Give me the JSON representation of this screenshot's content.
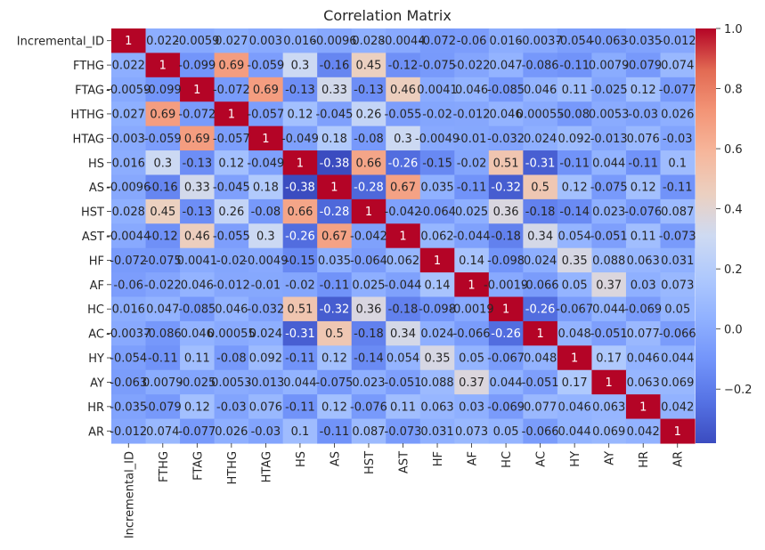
{
  "chart_data": {
    "type": "heatmap",
    "title": "Correlation Matrix",
    "xlabel": "",
    "ylabel": "",
    "colormap": "coolwarm",
    "vmin": -0.38,
    "vmax": 1.0,
    "colorbar_ticks": [
      "1.0",
      "0.8",
      "0.6",
      "0.4",
      "0.2",
      "0.0",
      "−0.2"
    ],
    "colorbar_tick_values": [
      1.0,
      0.8,
      0.6,
      0.4,
      0.2,
      0.0,
      -0.2
    ],
    "rows": [
      "Incremental_ID",
      "FTHG",
      "FTAG",
      "HTHG",
      "HTAG",
      "HS",
      "AS",
      "HST",
      "AST",
      "HF",
      "AF",
      "HC",
      "AC",
      "HY",
      "AY",
      "HR",
      "AR"
    ],
    "cols": [
      "Incremental_ID",
      "FTHG",
      "FTAG",
      "HTHG",
      "HTAG",
      "HS",
      "AS",
      "HST",
      "AST",
      "HF",
      "AF",
      "HC",
      "AC",
      "HY",
      "AY",
      "HR",
      "AR"
    ],
    "values": [
      [
        1,
        0.022,
        -0.0059,
        0.027,
        0.003,
        0.016,
        -0.0096,
        0.028,
        -0.0044,
        -0.072,
        -0.06,
        0.016,
        -0.0037,
        -0.054,
        -0.063,
        -0.035,
        -0.012
      ],
      [
        0.022,
        1,
        -0.099,
        0.69,
        -0.059,
        0.3,
        -0.16,
        0.45,
        -0.12,
        -0.075,
        -0.022,
        0.047,
        -0.086,
        -0.11,
        0.0079,
        -0.079,
        0.074
      ],
      [
        -0.0059,
        -0.099,
        1,
        -0.072,
        0.69,
        -0.13,
        0.33,
        -0.13,
        0.46,
        0.0041,
        0.046,
        -0.085,
        0.046,
        0.11,
        -0.025,
        0.12,
        -0.077
      ],
      [
        0.027,
        0.69,
        -0.072,
        1,
        -0.057,
        0.12,
        -0.045,
        0.26,
        -0.055,
        -0.02,
        -0.012,
        0.046,
        0.00055,
        -0.08,
        0.0053,
        -0.03,
        0.026
      ],
      [
        0.003,
        -0.059,
        0.69,
        -0.057,
        1,
        -0.049,
        0.18,
        -0.08,
        0.3,
        -0.0049,
        -0.01,
        -0.032,
        0.024,
        0.092,
        -0.013,
        0.076,
        -0.03
      ],
      [
        0.016,
        0.3,
        -0.13,
        0.12,
        -0.049,
        1,
        -0.38,
        0.66,
        -0.26,
        -0.15,
        -0.02,
        0.51,
        -0.31,
        -0.11,
        0.044,
        -0.11,
        0.1
      ],
      [
        -0.0096,
        -0.16,
        0.33,
        -0.045,
        0.18,
        -0.38,
        1,
        -0.28,
        0.67,
        0.035,
        -0.11,
        -0.32,
        0.5,
        0.12,
        -0.075,
        0.12,
        -0.11
      ],
      [
        0.028,
        0.45,
        -0.13,
        0.26,
        -0.08,
        0.66,
        -0.28,
        1,
        -0.042,
        -0.064,
        0.025,
        0.36,
        -0.18,
        -0.14,
        0.023,
        -0.076,
        0.087
      ],
      [
        -0.0044,
        -0.12,
        0.46,
        -0.055,
        0.3,
        -0.26,
        0.67,
        -0.042,
        1,
        0.062,
        -0.044,
        -0.18,
        0.34,
        0.054,
        -0.051,
        0.11,
        -0.073
      ],
      [
        -0.072,
        -0.075,
        0.0041,
        -0.02,
        -0.0049,
        -0.15,
        0.035,
        -0.064,
        0.062,
        1,
        0.14,
        -0.098,
        0.024,
        0.35,
        0.088,
        0.063,
        0.031
      ],
      [
        -0.06,
        -0.022,
        0.046,
        -0.012,
        -0.01,
        -0.02,
        -0.11,
        0.025,
        -0.044,
        0.14,
        1,
        -0.0019,
        -0.066,
        0.05,
        0.37,
        0.03,
        0.073
      ],
      [
        0.016,
        0.047,
        -0.085,
        0.046,
        -0.032,
        0.51,
        -0.32,
        0.36,
        -0.18,
        -0.098,
        -0.0019,
        1,
        -0.26,
        -0.067,
        0.044,
        -0.069,
        0.05
      ],
      [
        -0.0037,
        -0.086,
        0.046,
        0.00055,
        0.024,
        -0.31,
        0.5,
        -0.18,
        0.34,
        0.024,
        -0.066,
        -0.26,
        1,
        0.048,
        -0.051,
        0.077,
        -0.066
      ],
      [
        -0.054,
        -0.11,
        0.11,
        -0.08,
        0.092,
        -0.11,
        0.12,
        -0.14,
        0.054,
        0.35,
        0.05,
        -0.067,
        0.048,
        1,
        0.17,
        0.046,
        0.044
      ],
      [
        -0.063,
        0.0079,
        -0.025,
        0.0053,
        -0.013,
        0.044,
        -0.075,
        0.023,
        -0.051,
        0.088,
        0.37,
        0.044,
        -0.051,
        0.17,
        1,
        0.063,
        0.069
      ],
      [
        -0.035,
        -0.079,
        0.12,
        -0.03,
        0.076,
        -0.11,
        0.12,
        -0.076,
        0.11,
        0.063,
        0.03,
        -0.069,
        0.077,
        0.046,
        0.063,
        1,
        0.042
      ],
      [
        -0.012,
        0.074,
        -0.077,
        0.026,
        -0.03,
        0.1,
        -0.11,
        0.087,
        -0.073,
        0.031,
        0.073,
        0.05,
        -0.066,
        0.044,
        0.069,
        0.042,
        1
      ]
    ],
    "annotations": [
      [
        "1",
        "0.022",
        "-0.0059",
        "0.027",
        "0.003",
        "0.016",
        "-0.0096",
        "0.028",
        "-0.0044",
        "-0.072",
        "-0.06",
        "0.016",
        "-0.0037",
        "-0.054",
        "-0.063",
        "-0.035",
        "-0.012"
      ],
      [
        "0.022",
        "1",
        "-0.099",
        "0.69",
        "-0.059",
        "0.3",
        "-0.16",
        "0.45",
        "-0.12",
        "-0.075",
        "-0.022",
        "0.047",
        "-0.086",
        "-0.11",
        "0.0079",
        "-0.079",
        "0.074"
      ],
      [
        "-0.0059",
        "-0.099",
        "1",
        "-0.072",
        "0.69",
        "-0.13",
        "0.33",
        "-0.13",
        "0.46",
        "0.0041",
        "0.046",
        "-0.085",
        "0.046",
        "0.11",
        "-0.025",
        "0.12",
        "-0.077"
      ],
      [
        "0.027",
        "0.69",
        "-0.072",
        "1",
        "-0.057",
        "0.12",
        "-0.045",
        "0.26",
        "-0.055",
        "-0.02",
        "-0.012",
        "0.046",
        "0.00055",
        "-0.08",
        "0.0053",
        "-0.03",
        "0.026"
      ],
      [
        "0.003",
        "-0.059",
        "0.69",
        "-0.057",
        "1",
        "-0.049",
        "0.18",
        "-0.08",
        "0.3",
        "-0.0049",
        "-0.01",
        "-0.032",
        "0.024",
        "0.092",
        "-0.013",
        "0.076",
        "-0.03"
      ],
      [
        "0.016",
        "0.3",
        "-0.13",
        "0.12",
        "-0.049",
        "1",
        "-0.38",
        "0.66",
        "-0.26",
        "-0.15",
        "-0.02",
        "0.51",
        "-0.31",
        "-0.11",
        "0.044",
        "-0.11",
        "0.1"
      ],
      [
        "-0.0096",
        "-0.16",
        "0.33",
        "-0.045",
        "0.18",
        "-0.38",
        "1",
        "-0.28",
        "0.67",
        "0.035",
        "-0.11",
        "-0.32",
        "0.5",
        "0.12",
        "-0.075",
        "0.12",
        "-0.11"
      ],
      [
        "0.028",
        "0.45",
        "-0.13",
        "0.26",
        "-0.08",
        "0.66",
        "-0.28",
        "1",
        "-0.042",
        "-0.064",
        "0.025",
        "0.36",
        "-0.18",
        "-0.14",
        "0.023",
        "-0.076",
        "0.087"
      ],
      [
        "-0.0044",
        "-0.12",
        "0.46",
        "-0.055",
        "0.3",
        "-0.26",
        "0.67",
        "-0.042",
        "1",
        "0.062",
        "-0.044",
        "-0.18",
        "0.34",
        "0.054",
        "-0.051",
        "0.11",
        "-0.073"
      ],
      [
        "-0.072",
        "-0.075",
        "0.0041",
        "-0.02",
        "-0.0049",
        "-0.15",
        "0.035",
        "-0.064",
        "0.062",
        "1",
        "0.14",
        "-0.098",
        "0.024",
        "0.35",
        "0.088",
        "0.063",
        "0.031"
      ],
      [
        "-0.06",
        "-0.022",
        "0.046",
        "-0.012",
        "-0.01",
        "-0.02",
        "-0.11",
        "0.025",
        "-0.044",
        "0.14",
        "1",
        "-0.0019",
        "-0.066",
        "0.05",
        "0.37",
        "0.03",
        "0.073"
      ],
      [
        "0.016",
        "0.047",
        "-0.085",
        "0.046",
        "-0.032",
        "0.51",
        "-0.32",
        "0.36",
        "-0.18",
        "-0.098",
        "-0.0019",
        "1",
        "-0.26",
        "-0.067",
        "0.044",
        "-0.069",
        "0.05"
      ],
      [
        "-0.0037",
        "-0.086",
        "0.046",
        "0.00055",
        "0.024",
        "-0.31",
        "0.5",
        "-0.18",
        "0.34",
        "0.024",
        "-0.066",
        "-0.26",
        "1",
        "0.048",
        "-0.051",
        "0.077",
        "-0.066"
      ],
      [
        "-0.054",
        "-0.11",
        "0.11",
        "-0.08",
        "0.092",
        "-0.11",
        "0.12",
        "-0.14",
        "0.054",
        "0.35",
        "0.05",
        "-0.067",
        "0.048",
        "1",
        "0.17",
        "0.046",
        "0.044"
      ],
      [
        "-0.063",
        "0.0079",
        "-0.025",
        "0.0053",
        "-0.013",
        "0.044",
        "-0.075",
        "0.023",
        "-0.051",
        "0.088",
        "0.37",
        "0.044",
        "-0.051",
        "0.17",
        "1",
        "0.063",
        "0.069"
      ],
      [
        "-0.035",
        "-0.079",
        "0.12",
        "-0.03",
        "0.076",
        "-0.11",
        "0.12",
        "-0.076",
        "0.11",
        "0.063",
        "0.03",
        "-0.069",
        "0.077",
        "0.046",
        "0.063",
        "1",
        "0.042"
      ],
      [
        "-0.012",
        "0.074",
        "-0.077",
        "0.026",
        "-0.03",
        "0.1",
        "-0.11",
        "0.087",
        "-0.073",
        "0.031",
        "0.073",
        "0.05",
        "-0.066",
        "0.044",
        "0.069",
        "0.042",
        "1"
      ]
    ],
    "annotation_colors": {
      "on_dark": "#ffffff",
      "on_light": "#262626"
    }
  }
}
